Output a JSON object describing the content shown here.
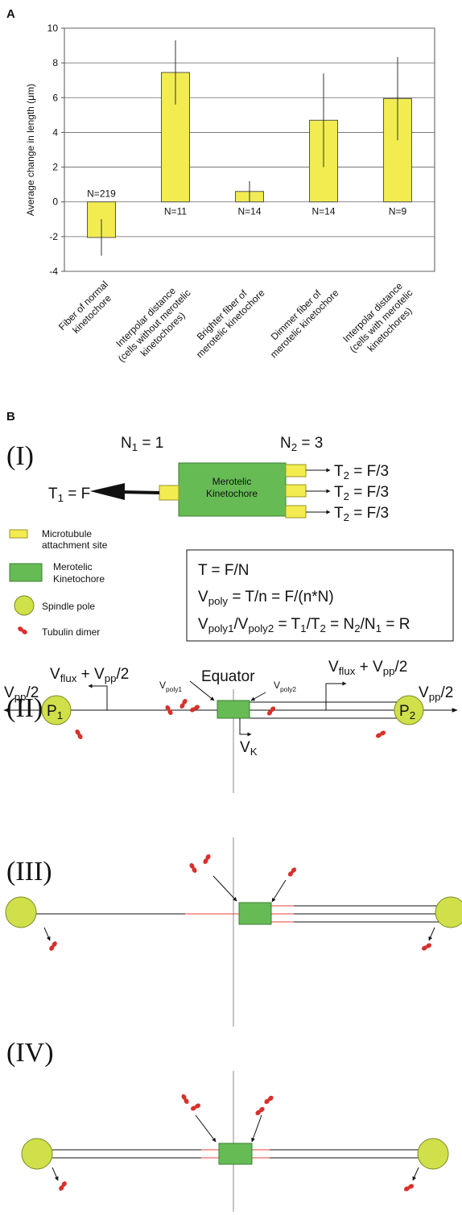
{
  "chart_data": {
    "type": "bar",
    "panel": "A",
    "ylabel": "Average change in length (μm)",
    "categories": [
      [
        "Fiber of normal",
        "kinetochore"
      ],
      [
        "Interpolar distance",
        "(cells without merotelic",
        "kinetochores)"
      ],
      [
        "Brighter fiber of",
        "merotelic kinetochore"
      ],
      [
        "Dimmer fiber of",
        "merotelic kinetochore"
      ],
      [
        "Interpolar distance",
        "(cells with merotelic",
        "kinetochores)"
      ]
    ],
    "values": [
      -2.05,
      7.45,
      0.6,
      4.7,
      5.95
    ],
    "errors": [
      1.05,
      1.85,
      0.6,
      2.7,
      2.4
    ],
    "annotations": [
      "N=219",
      "N=11",
      "N=14",
      "N=14",
      "N=9"
    ],
    "color": "#f2ec50",
    "ylim": [
      -4,
      10
    ],
    "yticks": [
      -4,
      -2,
      0,
      2,
      4,
      6,
      8,
      10
    ],
    "grid": true
  },
  "panel_b": {
    "label": "B",
    "I": {
      "label": "(I)",
      "n1": [
        "N",
        "1",
        " = 1"
      ],
      "n2": [
        "N",
        "2",
        " = 3"
      ],
      "kinetochore": [
        "Merotelic",
        "Kinetochore"
      ],
      "t1": [
        "T",
        "1",
        " = F"
      ],
      "t2": [
        [
          "T",
          "2",
          " = F/3"
        ],
        [
          "T",
          "2",
          " = F/3"
        ],
        [
          "T",
          "2",
          " = F/3"
        ]
      ],
      "legend": [
        [
          "Microtubule",
          "attachment site"
        ],
        [
          "Merotelic",
          "Kinetochore"
        ],
        [
          "Spindle pole"
        ],
        [
          "Tubulin dimer"
        ]
      ],
      "equations": [
        [
          "T = F/N"
        ],
        [
          "V",
          "poly",
          " = T/n = F/(n*N)"
        ],
        [
          "V",
          "poly1",
          "/V",
          "poly2",
          " = T",
          "1",
          "/T",
          "2",
          " = N",
          "2",
          "/N",
          "1",
          " = R"
        ]
      ]
    },
    "II": {
      "label": "(II)",
      "equator": "Equator",
      "vpoly1": [
        "V",
        "poly1"
      ],
      "vpoly2": [
        "V",
        "poly2"
      ],
      "flux_left": [
        "V",
        "flux",
        " + V",
        "pp",
        "/2"
      ],
      "flux_right": [
        "V",
        "flux",
        " + V",
        "pp",
        "/2"
      ],
      "vpp_left": [
        "V",
        "pp",
        "/2"
      ],
      "vpp_right": [
        "V",
        "pp",
        "/2"
      ],
      "p1": [
        "P",
        "1"
      ],
      "p2": [
        "P",
        "2"
      ],
      "vk": [
        "V",
        "K"
      ]
    },
    "III": {
      "label": "(III)"
    },
    "IV": {
      "label": "(IV)"
    }
  }
}
